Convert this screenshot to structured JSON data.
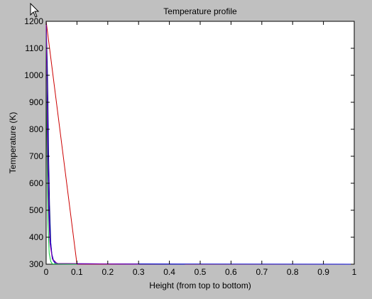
{
  "window": {
    "background": "#c0c0c0",
    "cursor_icon": "mouse-pointer-icon"
  },
  "chart_data": {
    "type": "line",
    "title": "Temperature profile",
    "xlabel": "Height (from top to bottom)",
    "ylabel": "Temperature (K)",
    "xlim": [
      0,
      1
    ],
    "ylim": [
      300,
      1200
    ],
    "xticks": [
      0,
      0.1,
      0.2,
      0.3,
      0.4,
      0.5,
      0.6,
      0.7,
      0.8,
      0.9,
      1
    ],
    "xtick_labels": [
      "0",
      "0.1",
      "0.2",
      "0.3",
      "0.4",
      "0.5",
      "0.6",
      "0.7",
      "0.8",
      "0.9",
      "1"
    ],
    "yticks": [
      300,
      400,
      500,
      600,
      700,
      800,
      900,
      1000,
      1100,
      1200
    ],
    "ytick_labels": [
      "300",
      "400",
      "500",
      "600",
      "700",
      "800",
      "900",
      "1000",
      "1100",
      "1200"
    ],
    "grid": false,
    "legend": "none",
    "series": [
      {
        "color": "#cc0000",
        "x": [
          0,
          0.1,
          1
        ],
        "y": [
          1200,
          300,
          300
        ]
      },
      {
        "color": "#000080",
        "x": [
          0,
          0.004,
          0.006,
          0.008,
          0.011,
          0.015,
          0.02,
          0.03,
          0.45
        ],
        "y": [
          1200,
          1030,
          900,
          700,
          520,
          380,
          320,
          302,
          300
        ]
      },
      {
        "color": "#0000cc",
        "x": [
          0,
          0.002,
          0.004,
          0.006,
          0.009,
          0.013,
          0.018,
          0.025,
          0.04,
          1
        ],
        "y": [
          1200,
          1000,
          850,
          680,
          520,
          400,
          340,
          310,
          301,
          300
        ]
      },
      {
        "color": "#00cc33",
        "x": [
          0,
          0.001,
          0.002,
          0.004,
          0.006,
          0.01,
          0.015,
          0.02,
          0.1
        ],
        "y": [
          1200,
          1030,
          820,
          600,
          450,
          340,
          310,
          301,
          300
        ]
      },
      {
        "color": "#8800aa",
        "x": [
          0,
          0.004,
          0.008,
          0.012,
          0.02,
          0.035,
          0.3
        ],
        "y": [
          1200,
          760,
          500,
          380,
          320,
          303,
          300
        ]
      }
    ]
  }
}
